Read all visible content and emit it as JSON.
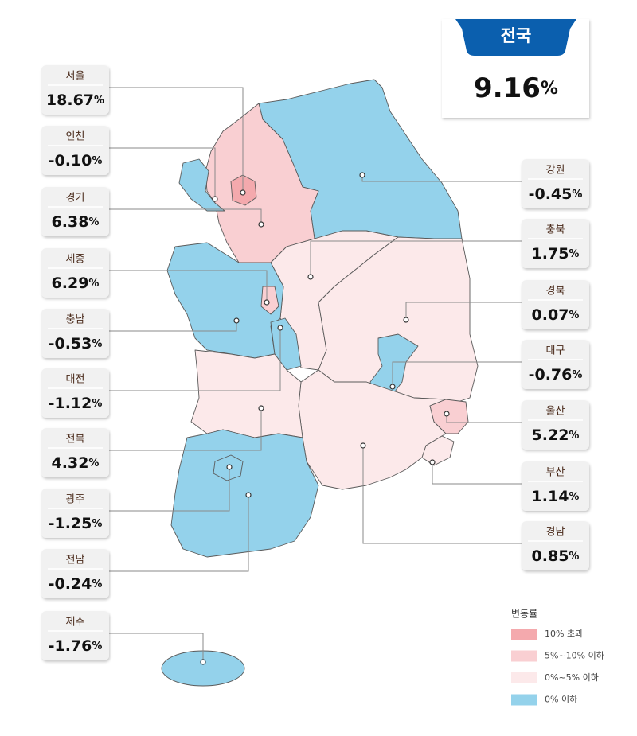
{
  "national": {
    "name": "전국",
    "value": 9.16,
    "unit": "%"
  },
  "regions": [
    {
      "name": "서울",
      "value": 18.67,
      "unit": "%",
      "color": "#f4a9ad"
    },
    {
      "name": "인천",
      "value": -0.1,
      "value_label": "-0.10",
      "unit": "%",
      "color": "#94d2eb"
    },
    {
      "name": "경기",
      "value": 6.38,
      "unit": "%",
      "color": "#f9cfd2"
    },
    {
      "name": "세종",
      "value": 6.29,
      "unit": "%",
      "color": "#f9cfd2"
    },
    {
      "name": "충남",
      "value": -0.53,
      "unit": "%",
      "color": "#94d2eb"
    },
    {
      "name": "대전",
      "value": -1.12,
      "unit": "%",
      "color": "#94d2eb"
    },
    {
      "name": "전북",
      "value": 4.32,
      "unit": "%",
      "color": "#fce9ea"
    },
    {
      "name": "광주",
      "value": -1.25,
      "unit": "%",
      "color": "#94d2eb"
    },
    {
      "name": "전남",
      "value": -0.24,
      "unit": "%",
      "color": "#94d2eb"
    },
    {
      "name": "제주",
      "value": -1.76,
      "unit": "%",
      "color": "#94d2eb"
    },
    {
      "name": "강원",
      "value": -0.45,
      "unit": "%",
      "color": "#94d2eb"
    },
    {
      "name": "충북",
      "value": 1.75,
      "unit": "%",
      "color": "#fce9ea"
    },
    {
      "name": "경북",
      "value": 0.07,
      "unit": "%",
      "color": "#fce9ea"
    },
    {
      "name": "대구",
      "value": -0.76,
      "unit": "%",
      "color": "#94d2eb"
    },
    {
      "name": "울산",
      "value": 5.22,
      "unit": "%",
      "color": "#f9cfd2"
    },
    {
      "name": "부산",
      "value": 1.14,
      "unit": "%",
      "color": "#fce9ea"
    },
    {
      "name": "경남",
      "value": 0.85,
      "unit": "%",
      "color": "#fce9ea"
    }
  ],
  "legend": {
    "title": "변동률",
    "items": [
      {
        "label": "10% 초과",
        "color": "#f4a9ad"
      },
      {
        "label": "5%~10% 이하",
        "color": "#f9cfd2"
      },
      {
        "label": "0%~5% 이하",
        "color": "#fce9ea"
      },
      {
        "label": "0% 이하",
        "color": "#94d2eb"
      }
    ]
  }
}
